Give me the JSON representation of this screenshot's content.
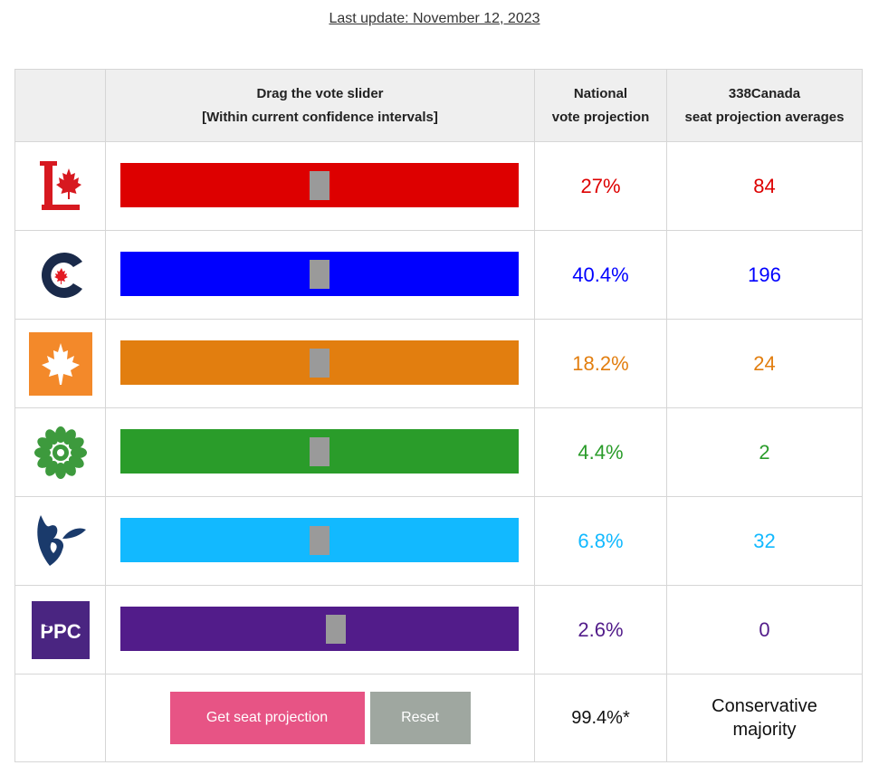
{
  "header": {
    "last_update": "Last update: November 12, 2023"
  },
  "table": {
    "col_slider": "Drag the vote slider",
    "col_slider_sub": "[Within current confidence intervals]",
    "col_vote_line1": "National",
    "col_vote_line2": "vote projection",
    "col_seats_line1": "338Canada",
    "col_seats_line2": "seat projection averages"
  },
  "parties": [
    {
      "logo": "liberal-logo",
      "color": "#dd0000",
      "vote": "27%",
      "seats": "84",
      "slider_position": 0.5
    },
    {
      "logo": "conservative-logo",
      "color": "#0000ff",
      "vote": "40.4%",
      "seats": "196",
      "slider_position": 0.5
    },
    {
      "logo": "ndp-logo",
      "color": "#e27e0f",
      "vote": "18.2%",
      "seats": "24",
      "slider_position": 0.5
    },
    {
      "logo": "green-logo",
      "color": "#2a9c2a",
      "vote": "4.4%",
      "seats": "2",
      "slider_position": 0.5
    },
    {
      "logo": "bloc-logo",
      "color": "#12b9ff",
      "vote": "6.8%",
      "seats": "32",
      "slider_position": 0.5
    },
    {
      "logo": "ppc-logo",
      "color": "#521c8a",
      "vote": "2.6%",
      "seats": "0",
      "slider_position": 0.54,
      "logo_text": "PPC"
    }
  ],
  "footer": {
    "get_button": "Get seat projection",
    "reset_button": "Reset",
    "total": "99.4%*",
    "outcome_line1": "Conservative",
    "outcome_line2": "majority"
  }
}
